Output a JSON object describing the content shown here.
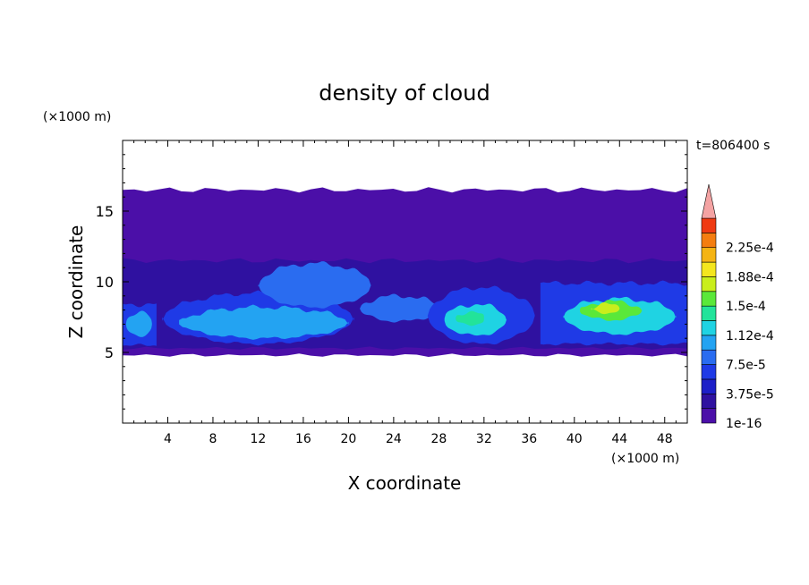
{
  "chart_data": {
    "type": "heatmap",
    "title": "density of cloud",
    "xlabel": "X coordinate",
    "ylabel": "Z coordinate",
    "x_unit": "(×1000 m)",
    "y_unit": "(×1000 m)",
    "time_label": "t=806400 s",
    "xlim": [
      0,
      50
    ],
    "ylim": [
      0,
      20
    ],
    "x_ticks": [
      4,
      8,
      12,
      16,
      20,
      24,
      28,
      32,
      36,
      40,
      44,
      48
    ],
    "y_ticks": [
      5,
      10,
      15
    ],
    "grid": false,
    "colorbar": {
      "labels": [
        "2.25e-4",
        "1.88e-4",
        "1.5e-4",
        "1.12e-4",
        "7.5e-5",
        "3.75e-5",
        "1e-16"
      ],
      "label_values": [
        0.000225,
        0.000188,
        0.00015,
        0.000112,
        7.5e-05,
        3.75e-05,
        1e-16
      ],
      "levels": [
        1e-16,
        1.875e-05,
        3.75e-05,
        5.625e-05,
        7.5e-05,
        9.375e-05,
        0.0001125,
        0.00013125,
        0.00015,
        0.00016875,
        0.0001875,
        0.00020625,
        0.000225,
        0.00024375
      ],
      "colors": [
        "#4b0fa8",
        "#2f11a0",
        "#1d1fc8",
        "#1f3ae6",
        "#2a6cf0",
        "#23a3f2",
        "#1fd3e3",
        "#22e39a",
        "#5ae83a",
        "#c9ee1c",
        "#f4e61e",
        "#f5b414",
        "#f47d10",
        "#ef3a12"
      ],
      "extend_color": "#f4a3a3"
    },
    "regions": [
      {
        "level": 0,
        "x0": 0,
        "x1": 50,
        "z_bottom": 4.8,
        "z_top": 16.5
      },
      {
        "level": 1,
        "x0": 0,
        "x1": 50,
        "z_bottom": 5.3,
        "z_top": 11.5
      },
      {
        "level": 3,
        "x0": 0,
        "x1": 3,
        "z_bottom": 5.5,
        "z_top": 8.4
      },
      {
        "level": 5,
        "x0": 0.3,
        "x1": 2.6,
        "z_bottom": 6.1,
        "z_top": 7.9
      },
      {
        "level": 3,
        "x0": 3.5,
        "x1": 20.5,
        "z_bottom": 5.6,
        "z_top": 9.2
      },
      {
        "level": 5,
        "x0": 5,
        "x1": 20,
        "z_bottom": 6.0,
        "z_top": 8.2
      },
      {
        "level": 4,
        "x0": 12,
        "x1": 22,
        "z_bottom": 8.2,
        "z_top": 11.3
      },
      {
        "level": 4,
        "x0": 21,
        "x1": 28,
        "z_bottom": 7.2,
        "z_top": 9.0
      },
      {
        "level": 3,
        "x0": 27,
        "x1": 36.5,
        "z_bottom": 5.6,
        "z_top": 9.6
      },
      {
        "level": 6,
        "x0": 28.5,
        "x1": 34,
        "z_bottom": 6.2,
        "z_top": 8.4
      },
      {
        "level": 7,
        "x0": 29.5,
        "x1": 32,
        "z_bottom": 6.9,
        "z_top": 7.9
      },
      {
        "level": 3,
        "x0": 37,
        "x1": 50,
        "z_bottom": 5.6,
        "z_top": 9.9
      },
      {
        "level": 6,
        "x0": 39,
        "x1": 49,
        "z_bottom": 6.3,
        "z_top": 8.8
      },
      {
        "level": 8,
        "x0": 40.5,
        "x1": 46,
        "z_bottom": 7.3,
        "z_top": 8.6
      },
      {
        "level": 9,
        "x0": 41.5,
        "x1": 44,
        "z_bottom": 7.8,
        "z_top": 8.4
      }
    ]
  }
}
